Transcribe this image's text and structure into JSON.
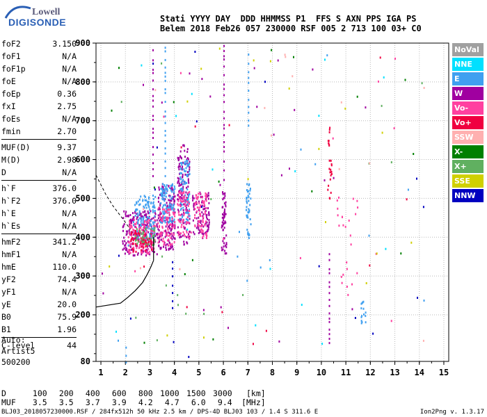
{
  "logo": {
    "line1": "Lowell",
    "line2": "DIGISONDE"
  },
  "header": {
    "line1": "Stati YYYY DAY  DDD HHMMSS P1  FFS S AXN PPS IGA PS",
    "line2": "Belem 2018 Feb26 057 230000 RSF 005 2 713 100 03+ C0"
  },
  "params_groups": [
    [
      [
        "foF2",
        "3.150"
      ],
      [
        "foF1",
        "N/A"
      ],
      [
        "foF1p",
        "N/A"
      ],
      [
        "foE",
        "N/A"
      ],
      [
        "foEp",
        "0.36"
      ],
      [
        "fxI",
        "2.75"
      ],
      [
        "foEs",
        "N/A"
      ],
      [
        "fmin",
        "2.70"
      ]
    ],
    [
      [
        "MUF(D)",
        "9.37"
      ],
      [
        "M(D)",
        "2.98"
      ],
      [
        "D",
        "N/A"
      ]
    ],
    [
      [
        "h`F",
        "376.0"
      ],
      [
        "h`F2",
        "376.0"
      ],
      [
        "h`E",
        "N/A"
      ],
      [
        "h`Es",
        "N/A"
      ]
    ],
    [
      [
        "hmF2",
        "341.2"
      ],
      [
        "hmF1",
        "N/A"
      ],
      [
        "hmE",
        "110.0"
      ],
      [
        "yF2",
        "74.4"
      ],
      [
        "yF1",
        "N/A"
      ],
      [
        "yE",
        "20.0"
      ],
      [
        "B0",
        "75.9"
      ],
      [
        "B1",
        "1.96"
      ]
    ],
    [
      [
        "C-level",
        "44"
      ]
    ]
  ],
  "auto": {
    "line1": "Auto:",
    "line2": "Artist5",
    "line3": "500200"
  },
  "legend": [
    {
      "label": "NoVal",
      "color": "#a0a0a0"
    },
    {
      "label": "NNE",
      "color": "#00e0ff"
    },
    {
      "label": "E",
      "color": "#40a0f0"
    },
    {
      "label": "W",
      "color": "#a000a0"
    },
    {
      "label": "Vo-",
      "color": "#ff40a0"
    },
    {
      "label": "Vo+",
      "color": "#f00040"
    },
    {
      "label": "SSW",
      "color": "#ffb0b0"
    },
    {
      "label": "X-",
      "color": "#008000"
    },
    {
      "label": "X+",
      "color": "#60b060"
    },
    {
      "label": "SSE",
      "color": "#d0d000"
    },
    {
      "label": "NNW",
      "color": "#0000c0"
    }
  ],
  "muf_table": {
    "d_label": "D",
    "d_values": [
      "100",
      "200",
      "400",
      "600",
      "800",
      "1000",
      "1500",
      "3000",
      "[km]"
    ],
    "muf_label": "MUF",
    "muf_values": [
      "3.5",
      "3.5",
      "3.7",
      "3.9",
      "4.2",
      "4.7",
      "6.0",
      "9.4",
      "[MHz]"
    ]
  },
  "footer": {
    "left": "BLJ03_2018057230000.RSF / 284fx512h 50 kHz 2.5 km / DPS-4D BLJ03 103 / 1.4 S 311.6 E",
    "right": "Ion2Png v. 1.3.17"
  },
  "chart_data": {
    "type": "scatter",
    "x_ticks": [
      "1",
      "2",
      "3",
      "4",
      "5",
      "6",
      "7",
      "8",
      "9",
      "10",
      "11",
      "12",
      "13",
      "14",
      "15"
    ],
    "y_ticks": [
      "80",
      "200",
      "300",
      "400",
      "500",
      "600",
      "700",
      "800",
      "900"
    ],
    "xlim": [
      0.8,
      15.2
    ],
    "ylim": [
      80,
      900
    ],
    "x_unit": "MHz",
    "y_unit": "km",
    "grid": true,
    "profile_solid": [
      [
        1.8,
        230
      ],
      [
        2.1,
        245
      ],
      [
        2.4,
        262
      ],
      [
        2.7,
        283
      ],
      [
        2.9,
        305
      ],
      [
        3.05,
        325
      ],
      [
        3.15,
        340
      ]
    ],
    "profile_dashed": [
      [
        0.8,
        560
      ],
      [
        1.2,
        510
      ],
      [
        1.5,
        480
      ],
      [
        1.8,
        455
      ],
      [
        2.0,
        438
      ],
      [
        2.2,
        420
      ]
    ],
    "vertical_trace_segments": [
      {
        "x": 3.15,
        "y0": 340,
        "y1": 400
      }
    ],
    "echo_clusters": [
      {
        "x0": 1.85,
        "x1": 3.3,
        "y0": 355,
        "y1": 470,
        "dir": "W",
        "n": 220
      },
      {
        "x0": 2.3,
        "x1": 3.2,
        "y0": 400,
        "y1": 510,
        "dir": "E",
        "n": 130
      },
      {
        "x0": 2.1,
        "x1": 3.2,
        "y0": 360,
        "y1": 450,
        "dir": "Vo-",
        "n": 120
      },
      {
        "x0": 2.2,
        "x1": 3.1,
        "y0": 365,
        "y1": 420,
        "dir": "Vo+",
        "n": 60
      },
      {
        "x0": 2.3,
        "x1": 3.2,
        "y0": 380,
        "y1": 430,
        "dir": "X+",
        "n": 40
      },
      {
        "x0": 3.3,
        "x1": 4.0,
        "y0": 370,
        "y1": 540,
        "dir": "W",
        "n": 160
      },
      {
        "x0": 3.4,
        "x1": 4.0,
        "y0": 440,
        "y1": 540,
        "dir": "E",
        "n": 110
      },
      {
        "x0": 3.3,
        "x1": 4.0,
        "y0": 380,
        "y1": 480,
        "dir": "Vo-",
        "n": 80
      },
      {
        "x0": 4.1,
        "x1": 4.6,
        "y0": 380,
        "y1": 640,
        "dir": "W",
        "n": 130
      },
      {
        "x0": 4.2,
        "x1": 4.6,
        "y0": 440,
        "y1": 600,
        "dir": "E",
        "n": 90
      },
      {
        "x0": 4.1,
        "x1": 4.6,
        "y0": 400,
        "y1": 520,
        "dir": "Vo-",
        "n": 70
      },
      {
        "x0": 4.7,
        "x1": 5.4,
        "y0": 400,
        "y1": 520,
        "dir": "W",
        "n": 90
      },
      {
        "x0": 4.8,
        "x1": 5.3,
        "y0": 400,
        "y1": 520,
        "dir": "Vo-",
        "n": 70
      },
      {
        "x0": 5.9,
        "x1": 6.1,
        "y0": 360,
        "y1": 520,
        "dir": "W",
        "n": 60
      },
      {
        "x0": 6.9,
        "x1": 7.1,
        "y0": 400,
        "y1": 540,
        "dir": "E",
        "n": 40
      },
      {
        "x0": 10.2,
        "x1": 10.4,
        "y0": 500,
        "y1": 690,
        "dir": "Vo+",
        "n": 25
      },
      {
        "x0": 10.6,
        "x1": 11.5,
        "y0": 250,
        "y1": 520,
        "dir": "Vo-",
        "n": 25
      },
      {
        "x0": 11.6,
        "x1": 11.8,
        "y0": 180,
        "y1": 240,
        "dir": "E",
        "n": 15
      }
    ],
    "scatter_noise_count": 160
  }
}
